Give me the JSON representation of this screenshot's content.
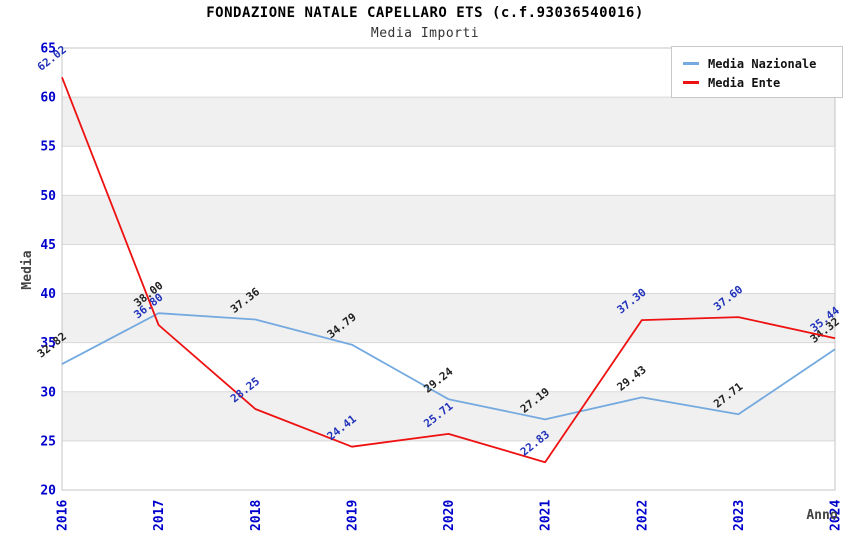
{
  "chart_data": {
    "type": "line",
    "title": "FONDAZIONE NATALE CAPELLARO ETS (c.f.93036540016)",
    "subtitle": "Media Importi",
    "xlabel": "Anno",
    "ylabel": "Media",
    "x": [
      "2016",
      "2017",
      "2018",
      "2019",
      "2020",
      "2021",
      "2022",
      "2023",
      "2024"
    ],
    "ylim": [
      20,
      65
    ],
    "ytick_step": 5,
    "grid": true,
    "legend_position": "top-right",
    "series": [
      {
        "name": "Media Nazionale",
        "color": "#74aadf",
        "label_color": "#222222",
        "values": [
          32.82,
          38.0,
          37.36,
          34.79,
          29.24,
          27.19,
          29.43,
          27.71,
          34.32
        ]
      },
      {
        "name": "Media Ente",
        "color": "#ee1111",
        "label_color": "#2233bb",
        "values": [
          62.02,
          36.8,
          28.25,
          24.41,
          25.71,
          22.83,
          37.3,
          37.6,
          35.44
        ]
      }
    ],
    "colors": {
      "tick": "#0000cc",
      "axis_label": "#444444",
      "band": "#f0f0f0",
      "grid": "#d9d9d9",
      "border": "#c5c5c5",
      "background": "#ffffff"
    }
  }
}
